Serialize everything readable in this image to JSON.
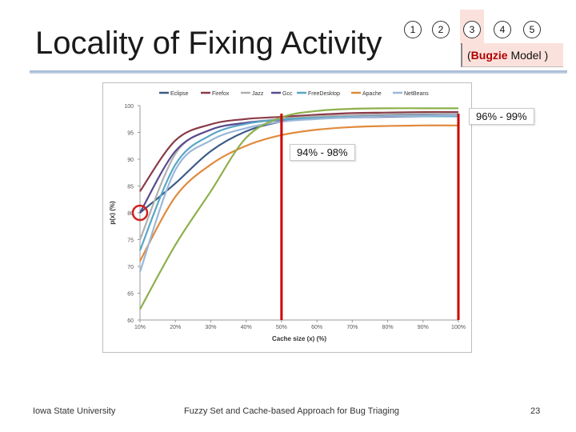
{
  "slide": {
    "title": "Locality of Fixing Activity",
    "steps": [
      "1",
      "2",
      "3",
      "4",
      "5"
    ],
    "model_prefix": "(",
    "model_name": "Bugzie",
    "model_suffix": " Model )",
    "callout_right": "96% - 99%",
    "callout_mid": "94% - 98%",
    "footer_left": "Iowa State University",
    "footer_center": "Fuzzy Set and Cache-based Approach for Bug Triaging",
    "page_number": "23"
  },
  "chart_data": {
    "type": "line",
    "xlabel": "Cache size (x) (%)",
    "ylabel": "p(x) (%)",
    "x": [
      10,
      20,
      30,
      40,
      50,
      60,
      70,
      80,
      90,
      100
    ],
    "x_tick_labels": [
      "10%",
      "20%",
      "30%",
      "40%",
      "50%",
      "60%",
      "70%",
      "80%",
      "90%",
      "100%"
    ],
    "xlim": [
      10,
      100
    ],
    "ylim": [
      60,
      100
    ],
    "y_ticks": [
      60,
      65,
      70,
      75,
      80,
      85,
      90,
      95,
      100
    ],
    "grid": false,
    "legend_position": "top",
    "series": [
      {
        "name": "Eclipse",
        "color": "#3b5b86",
        "values": [
          80,
          85.5,
          91.5,
          95.2,
          97,
          97.8,
          98,
          98.1,
          98.2,
          98.2
        ]
      },
      {
        "name": "Firefox",
        "color": "#8b3a4a",
        "values": [
          84,
          93.5,
          96.5,
          97.5,
          97.9,
          98.3,
          98.6,
          98.7,
          98.8,
          98.8
        ]
      },
      {
        "name": "Jazz",
        "color": "#b0b0b0",
        "values": [
          75,
          91,
          95.5,
          96.8,
          97.5,
          98,
          98.2,
          98.4,
          98.5,
          98.5
        ]
      },
      {
        "name": "Gcc",
        "color": "#5b4a8f",
        "values": [
          80,
          91.5,
          95.5,
          96.8,
          97.3,
          97.6,
          97.8,
          97.9,
          98,
          98
        ]
      },
      {
        "name": "FreeDesktop",
        "color": "#5aa6c4",
        "values": [
          73,
          89,
          94.5,
          96.6,
          97.4,
          97.7,
          97.9,
          98,
          98,
          98
        ]
      },
      {
        "name": "Apache",
        "color": "#e08a3c",
        "values": [
          71,
          83,
          89,
          92.5,
          94.5,
          95.5,
          96,
          96.2,
          96.3,
          96.3
        ]
      },
      {
        "name": "NetBeans",
        "color": "#9ab7d8",
        "values": [
          69,
          88,
          93.5,
          95.8,
          97,
          97.5,
          97.8,
          98,
          98.1,
          98.2
        ]
      },
      {
        "name": "",
        "color": "#8db04c",
        "values": [
          62,
          74,
          84,
          94,
          97.8,
          99,
          99.4,
          99.5,
          99.5,
          99.5
        ]
      }
    ],
    "markers": {
      "vertical_lines_at_x": [
        50,
        100
      ],
      "vertical_line_color": "#cc0000",
      "circle_at": {
        "x": 10,
        "y": 80
      },
      "circle_color": "#d02020"
    }
  }
}
